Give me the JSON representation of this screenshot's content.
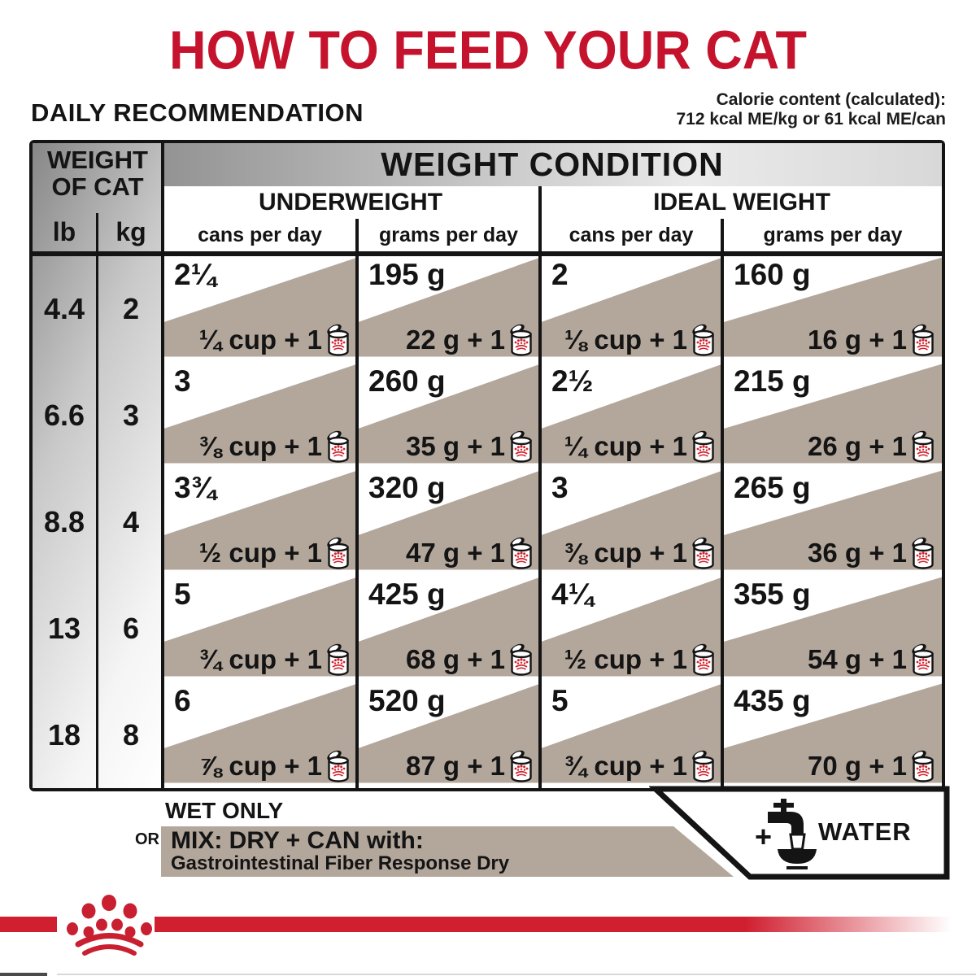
{
  "title": "HOW TO FEED YOUR CAT",
  "section_heading": "DAILY RECOMMENDATION",
  "calorie_note": {
    "line1": "Calorie content (calculated):",
    "line2": "712 kcal ME/kg or 61 kcal ME/can"
  },
  "table": {
    "condition_header": "WEIGHT CONDITION",
    "weight_header": {
      "line1": "WEIGHT",
      "line2": "OF CAT",
      "lb": "lb",
      "kg": "kg"
    },
    "groups": [
      {
        "label": "UNDERWEIGHT",
        "columns": [
          "cans per day",
          "grams per day"
        ]
      },
      {
        "label": "IDEAL WEIGHT",
        "columns": [
          "cans per day",
          "grams per day"
        ]
      }
    ],
    "rows": [
      {
        "lb": "4.4",
        "kg": "2",
        "cells": [
          {
            "wet": "2¼",
            "mix": "¼ cup + 1"
          },
          {
            "wet": "195 g",
            "mix": "22 g + 1"
          },
          {
            "wet": "2",
            "mix": "⅛ cup + 1"
          },
          {
            "wet": "160 g",
            "mix": "16 g + 1"
          }
        ]
      },
      {
        "lb": "6.6",
        "kg": "3",
        "cells": [
          {
            "wet": "3",
            "mix": "⅜ cup + 1"
          },
          {
            "wet": "260 g",
            "mix": "35 g + 1"
          },
          {
            "wet": "2½",
            "mix": "¼ cup + 1"
          },
          {
            "wet": "215 g",
            "mix": "26 g + 1"
          }
        ]
      },
      {
        "lb": "8.8",
        "kg": "4",
        "cells": [
          {
            "wet": "3¾",
            "mix": "½ cup + 1"
          },
          {
            "wet": "320 g",
            "mix": "47 g + 1"
          },
          {
            "wet": "3",
            "mix": "⅜ cup + 1"
          },
          {
            "wet": "265 g",
            "mix": "36 g + 1"
          }
        ]
      },
      {
        "lb": "13",
        "kg": "6",
        "cells": [
          {
            "wet": "5",
            "mix": "¾ cup + 1"
          },
          {
            "wet": "425 g",
            "mix": "68 g + 1"
          },
          {
            "wet": "4¼",
            "mix": "½ cup + 1"
          },
          {
            "wet": "355 g",
            "mix": "54 g + 1"
          }
        ]
      },
      {
        "lb": "18",
        "kg": "8",
        "cells": [
          {
            "wet": "6",
            "mix": "⅞ cup + 1"
          },
          {
            "wet": "520 g",
            "mix": "87 g + 1"
          },
          {
            "wet": "5",
            "mix": "¾ cup + 1"
          },
          {
            "wet": "435 g",
            "mix": "70 g + 1"
          }
        ]
      }
    ]
  },
  "legend": {
    "wet_only": "WET ONLY",
    "or": "OR",
    "mix_title": "MIX: DRY + CAN with:",
    "mix_product": "Gastrointestinal Fiber Response Dry",
    "plus": "+",
    "water": "WATER"
  },
  "icons": {
    "can": "canned-food-icon",
    "water": "water-tap-bowl-icon",
    "crown": "royal-canin-crown-logo"
  },
  "colors": {
    "brand_red": "#c5132d",
    "band_red": "#d02030",
    "taupe": "#b3a79c"
  }
}
